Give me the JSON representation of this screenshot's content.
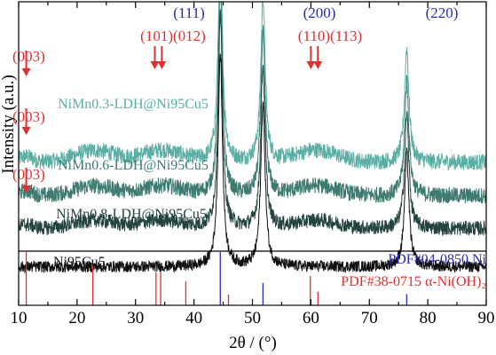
{
  "chart_data": {
    "type": "line",
    "xlabel": "2θ / (°)",
    "ylabel": "Intensity (a.u.)",
    "xlim": [
      10,
      90
    ],
    "x_ticks": [
      "10",
      "20",
      "30",
      "40",
      "50",
      "60",
      "70",
      "80",
      "90"
    ],
    "y_ticks_shown": false,
    "series": [
      {
        "name": "NiMn0.3-LDH@Ni95Cu5",
        "color": "#5aaea3",
        "baseline": 0.86,
        "noise": 0.1,
        "ldh_amp": 0.18,
        "peaks": [
          {
            "x": 44.5,
            "height": 2.6
          },
          {
            "x": 51.8,
            "height": 2.0
          },
          {
            "x": 76.4,
            "height": 1.4
          }
        ]
      },
      {
        "name": "NiMn0.6-LDH@Ni95Cu5",
        "color": "#3d7a70",
        "baseline": 0.45,
        "noise": 0.1,
        "ldh_amp": 0.15,
        "peaks": [
          {
            "x": 44.5,
            "height": 2.6
          },
          {
            "x": 51.8,
            "height": 2.0
          },
          {
            "x": 76.4,
            "height": 1.4
          }
        ]
      },
      {
        "name": "NiMn0.8-LDH@Ni95Cu5",
        "color": "#23443e",
        "baseline": 0.05,
        "noise": 0.09,
        "ldh_amp": 0.12,
        "peaks": [
          {
            "x": 44.5,
            "height": 2.6
          },
          {
            "x": 51.8,
            "height": 2.0
          },
          {
            "x": 76.4,
            "height": 1.4
          }
        ]
      },
      {
        "name": "Ni95Cu5",
        "color": "#111111",
        "baseline": -0.42,
        "noise": 0.07,
        "ldh_amp": 0.0,
        "peaks": [
          {
            "x": 44.5,
            "height": 2.6
          },
          {
            "x": 51.8,
            "height": 2.0
          },
          {
            "x": 76.4,
            "height": 1.4
          }
        ]
      }
    ],
    "reference_patterns": [
      {
        "name": "PDF#04-0850 Ni",
        "color": "#2b2bb0",
        "lines": [
          {
            "x": 44.5,
            "intensity": 1.0
          },
          {
            "x": 51.8,
            "intensity": 0.42
          },
          {
            "x": 76.4,
            "intensity": 0.21
          }
        ]
      },
      {
        "name": "PDF#38-0715 α-Ni(OH)₂",
        "color": "#e03030",
        "lines": [
          {
            "x": 11.3,
            "intensity": 1.0
          },
          {
            "x": 22.7,
            "intensity": 0.78
          },
          {
            "x": 33.5,
            "intensity": 0.62
          },
          {
            "x": 34.3,
            "intensity": 0.62
          },
          {
            "x": 38.6,
            "intensity": 0.45
          },
          {
            "x": 45.9,
            "intensity": 0.2
          },
          {
            "x": 59.9,
            "intensity": 0.55
          },
          {
            "x": 61.2,
            "intensity": 0.25
          }
        ]
      }
    ],
    "peak_labels": [
      {
        "text": "(111)",
        "x": 44.5,
        "color": "#2b2bb0"
      },
      {
        "text": "(200)",
        "x": 51.8,
        "color": "#2b2bb0"
      },
      {
        "text": "(220)",
        "x": 76.4,
        "color": "#2b2bb0"
      },
      {
        "text": "(101)(012)",
        "x": 33.9,
        "color": "#e03030"
      },
      {
        "text": "(110)(113)",
        "x": 60.6,
        "color": "#e03030"
      },
      {
        "text": "(003)",
        "x": 11.3,
        "color": "#e03030"
      },
      {
        "text": "(003)",
        "x": 11.3,
        "color": "#e03030"
      },
      {
        "text": "(003)",
        "x": 11.3,
        "color": "#e03030"
      }
    ]
  }
}
